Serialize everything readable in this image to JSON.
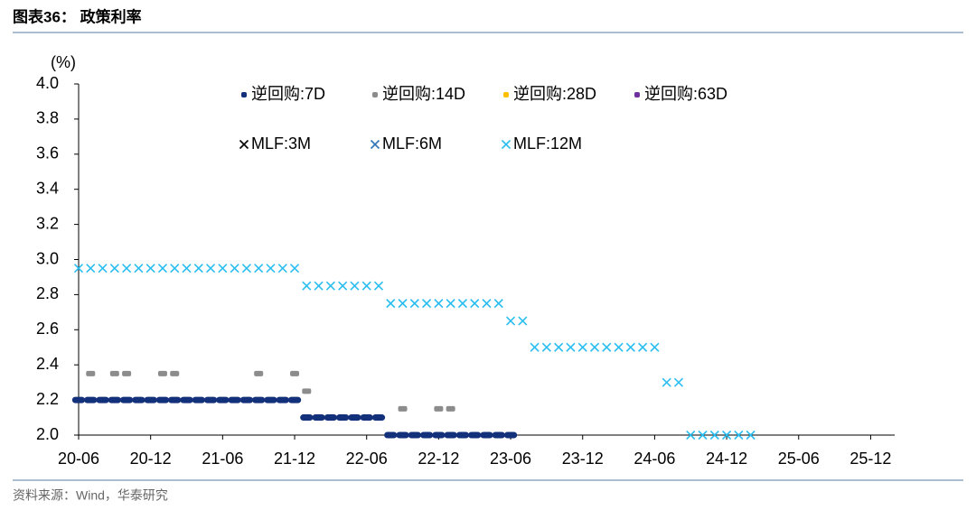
{
  "chart_data": {
    "type": "scatter",
    "title": "图表36：  政策利率",
    "source": "资料来源：Wind，华泰研究",
    "ylabel": "(%)",
    "xlim": [
      "20-06",
      "26-02"
    ],
    "xticks": [
      "20-06",
      "20-12",
      "21-06",
      "21-12",
      "22-06",
      "22-12",
      "23-06",
      "23-12",
      "24-06",
      "24-12",
      "25-06",
      "25-12"
    ],
    "ylim": [
      2,
      4
    ],
    "yticks": [
      {
        "value": 2,
        "label": "2.0"
      },
      {
        "value": 2.2,
        "label": "2.2"
      },
      {
        "value": 2.4,
        "label": "2.4"
      },
      {
        "value": 2.6,
        "label": "2.6"
      },
      {
        "value": 2.8,
        "label": "2.8"
      },
      {
        "value": 3,
        "label": "3.0"
      },
      {
        "value": 3.2,
        "label": "3.2"
      },
      {
        "value": 3.4,
        "label": "3.4"
      },
      {
        "value": 3.6,
        "label": "3.6"
      },
      {
        "value": 3.8,
        "label": "3.8"
      },
      {
        "value": 4,
        "label": "4.0"
      }
    ],
    "series": [
      {
        "name": "逆回购:7D",
        "color": "#13307a",
        "marker": "bar",
        "x": [
          "20-06",
          "20-07",
          "20-08",
          "20-09",
          "20-10",
          "20-11",
          "20-12",
          "21-01",
          "21-02",
          "21-03",
          "21-04",
          "21-05",
          "21-06",
          "21-07",
          "21-08",
          "21-09",
          "21-10",
          "21-11",
          "21-12",
          "22-01",
          "22-02",
          "22-03",
          "22-04",
          "22-05",
          "22-06",
          "22-07",
          "22-08",
          "22-09",
          "22-10",
          "22-11",
          "22-12",
          "23-01",
          "23-02",
          "23-03",
          "23-04",
          "23-05",
          "23-06"
        ],
        "values": [
          2.2,
          2.2,
          2.2,
          2.2,
          2.2,
          2.2,
          2.2,
          2.2,
          2.2,
          2.2,
          2.2,
          2.2,
          2.2,
          2.2,
          2.2,
          2.2,
          2.2,
          2.2,
          2.2,
          2.1,
          2.1,
          2.1,
          2.1,
          2.1,
          2.1,
          2.1,
          2.0,
          2.0,
          2.0,
          2.0,
          2.0,
          2.0,
          2.0,
          2.0,
          2.0,
          2.0,
          2.0
        ]
      },
      {
        "name": "逆回购:14D",
        "color": "#8c8c8c",
        "marker": "dash",
        "x": [
          "20-07",
          "20-09",
          "20-10",
          "21-01",
          "21-02",
          "21-09",
          "21-12",
          "22-01",
          "22-09",
          "22-12",
          "23-01"
        ],
        "values": [
          2.35,
          2.35,
          2.35,
          2.35,
          2.35,
          2.35,
          2.35,
          2.25,
          2.15,
          2.15,
          2.15
        ]
      },
      {
        "name": "逆回购:28D",
        "color": "#ffc000",
        "marker": "dash",
        "x": [],
        "values": []
      },
      {
        "name": "逆回购:63D",
        "color": "#7030a0",
        "marker": "dash",
        "x": [],
        "values": []
      },
      {
        "name": "MLF:3M",
        "color": "#000000",
        "marker": "cross",
        "x": [],
        "values": []
      },
      {
        "name": "MLF:6M",
        "color": "#2e75b6",
        "marker": "cross",
        "x": [],
        "values": []
      },
      {
        "name": "MLF:12M",
        "color": "#2cbef0",
        "marker": "cross",
        "x": [
          "20-06",
          "20-07",
          "20-08",
          "20-09",
          "20-10",
          "20-11",
          "20-12",
          "21-01",
          "21-02",
          "21-03",
          "21-04",
          "21-05",
          "21-06",
          "21-07",
          "21-08",
          "21-09",
          "21-10",
          "21-11",
          "21-12",
          "22-01",
          "22-02",
          "22-03",
          "22-04",
          "22-05",
          "22-06",
          "22-07",
          "22-08",
          "22-09",
          "22-10",
          "22-11",
          "22-12",
          "23-01",
          "23-02",
          "23-03",
          "23-04",
          "23-05",
          "23-06",
          "23-07",
          "23-08",
          "23-09",
          "23-10",
          "23-11",
          "23-12",
          "24-01",
          "24-02",
          "24-03",
          "24-04",
          "24-05",
          "24-06",
          "24-07",
          "24-08",
          "24-09",
          "24-10",
          "24-11",
          "24-12",
          "25-01",
          "25-02"
        ],
        "values": [
          2.95,
          2.95,
          2.95,
          2.95,
          2.95,
          2.95,
          2.95,
          2.95,
          2.95,
          2.95,
          2.95,
          2.95,
          2.95,
          2.95,
          2.95,
          2.95,
          2.95,
          2.95,
          2.95,
          2.85,
          2.85,
          2.85,
          2.85,
          2.85,
          2.85,
          2.85,
          2.75,
          2.75,
          2.75,
          2.75,
          2.75,
          2.75,
          2.75,
          2.75,
          2.75,
          2.75,
          2.65,
          2.65,
          2.5,
          2.5,
          2.5,
          2.5,
          2.5,
          2.5,
          2.5,
          2.5,
          2.5,
          2.5,
          2.5,
          2.3,
          2.3,
          2.0,
          2.0,
          2.0,
          2.0,
          2.0,
          2.0
        ]
      }
    ]
  }
}
